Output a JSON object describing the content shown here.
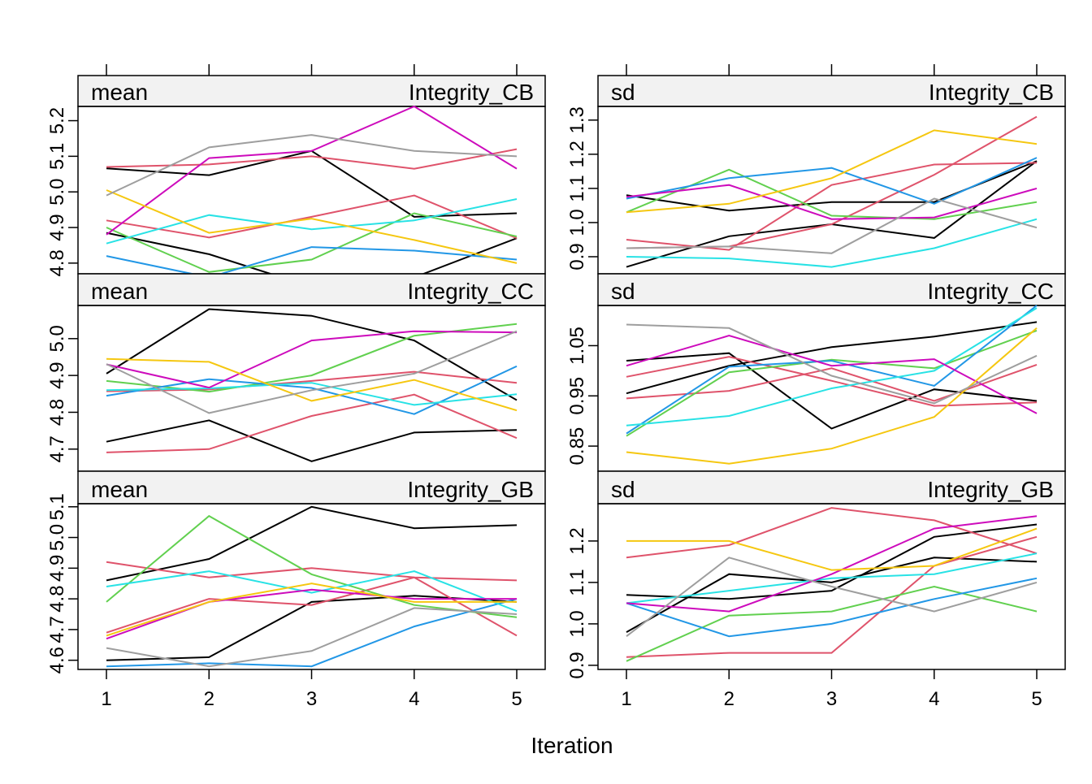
{
  "xlabel": "Iteration",
  "x_ticks": [
    1,
    2,
    3,
    4,
    5
  ],
  "colors": [
    "#000000",
    "#DF536B",
    "#61D04F",
    "#2297E6",
    "#28E2E5",
    "#CD0BBC",
    "#F5C710",
    "#9E9E9E"
  ],
  "chart_data": [
    {
      "type": "line",
      "stat": "mean",
      "variable": "Integrity_CB",
      "x": [
        1,
        2,
        3,
        4,
        5
      ],
      "ylim": [
        4.77,
        5.24
      ],
      "y_ticks": [
        4.8,
        4.9,
        5.0,
        5.1,
        5.2
      ],
      "y_tick_labels": [
        "4.8",
        "4.9",
        "5.0",
        "5.1",
        "5.2"
      ],
      "series": [
        {
          "color": "#000000",
          "values": [
            5.066,
            5.047,
            5.115,
            4.93,
            4.94
          ]
        },
        {
          "color": "#000000",
          "values": [
            4.885,
            4.825,
            4.733,
            4.76,
            4.87
          ]
        },
        {
          "color": "#DF536B",
          "values": [
            4.92,
            4.872,
            4.93,
            4.99,
            4.87
          ]
        },
        {
          "color": "#DF536B",
          "values": [
            5.07,
            5.077,
            5.1,
            5.065,
            5.12
          ]
        },
        {
          "color": "#61D04F",
          "values": [
            4.9,
            4.775,
            4.81,
            4.94,
            4.875
          ]
        },
        {
          "color": "#2297E6",
          "values": [
            4.82,
            4.76,
            4.845,
            4.835,
            4.81
          ]
        },
        {
          "color": "#28E2E5",
          "values": [
            4.855,
            4.935,
            4.895,
            4.92,
            4.98
          ]
        },
        {
          "color": "#CD0BBC",
          "values": [
            4.88,
            5.095,
            5.115,
            5.24,
            5.065
          ]
        },
        {
          "color": "#F5C710",
          "values": [
            5.005,
            4.885,
            4.925,
            4.865,
            4.8
          ]
        },
        {
          "color": "#9E9E9E",
          "values": [
            4.99,
            5.125,
            5.16,
            5.115,
            5.1
          ]
        }
      ]
    },
    {
      "type": "line",
      "stat": "sd",
      "variable": "Integrity_CB",
      "x": [
        1,
        2,
        3,
        4,
        5
      ],
      "ylim": [
        0.85,
        1.34
      ],
      "y_ticks": [
        0.9,
        1.0,
        1.1,
        1.2,
        1.3
      ],
      "y_tick_labels": [
        "0.9",
        "1.0",
        "1.1",
        "1.2",
        "1.3"
      ],
      "series": [
        {
          "color": "#000000",
          "values": [
            1.08,
            1.035,
            1.06,
            1.06,
            1.18
          ]
        },
        {
          "color": "#000000",
          "values": [
            0.87,
            0.96,
            0.995,
            0.955,
            1.18
          ]
        },
        {
          "color": "#DF536B",
          "values": [
            0.95,
            0.92,
            1.11,
            1.17,
            1.175
          ]
        },
        {
          "color": "#DF536B",
          "values": [
            0.925,
            0.93,
            0.995,
            1.14,
            1.31
          ]
        },
        {
          "color": "#61D04F",
          "values": [
            1.03,
            1.155,
            1.02,
            1.01,
            1.06
          ]
        },
        {
          "color": "#2297E6",
          "values": [
            1.07,
            1.13,
            1.16,
            1.055,
            1.19
          ]
        },
        {
          "color": "#28E2E5",
          "values": [
            0.9,
            0.895,
            0.87,
            0.925,
            1.01
          ]
        },
        {
          "color": "#CD0BBC",
          "values": [
            1.075,
            1.11,
            1.01,
            1.015,
            1.1
          ]
        },
        {
          "color": "#F5C710",
          "values": [
            1.03,
            1.055,
            1.13,
            1.27,
            1.23
          ]
        },
        {
          "color": "#9E9E9E",
          "values": [
            0.925,
            0.93,
            0.91,
            1.07,
            0.985
          ]
        }
      ]
    },
    {
      "type": "line",
      "stat": "mean",
      "variable": "Integrity_CC",
      "x": [
        1,
        2,
        3,
        4,
        5
      ],
      "ylim": [
        4.64,
        5.09
      ],
      "y_ticks": [
        4.7,
        4.8,
        4.9,
        5.0
      ],
      "y_tick_labels": [
        "4.7",
        "4.8",
        "4.9",
        "5.0"
      ],
      "series": [
        {
          "color": "#000000",
          "values": [
            4.905,
            5.08,
            5.062,
            4.995,
            4.833
          ]
        },
        {
          "color": "#000000",
          "values": [
            4.72,
            4.778,
            4.667,
            4.745,
            4.752
          ]
        },
        {
          "color": "#DF536B",
          "values": [
            4.857,
            4.862,
            4.885,
            4.91,
            4.88
          ]
        },
        {
          "color": "#DF536B",
          "values": [
            4.691,
            4.7,
            4.79,
            4.848,
            4.73
          ]
        },
        {
          "color": "#61D04F",
          "values": [
            4.885,
            4.856,
            4.9,
            5.008,
            5.04
          ]
        },
        {
          "color": "#2297E6",
          "values": [
            4.845,
            4.89,
            4.866,
            4.795,
            4.925
          ]
        },
        {
          "color": "#28E2E5",
          "values": [
            4.86,
            4.865,
            4.88,
            4.82,
            4.849
          ]
        },
        {
          "color": "#CD0BBC",
          "values": [
            4.93,
            4.867,
            4.995,
            5.02,
            5.017
          ]
        },
        {
          "color": "#F5C710",
          "values": [
            4.945,
            4.937,
            4.831,
            4.888,
            4.805
          ]
        },
        {
          "color": "#9E9E9E",
          "values": [
            4.931,
            4.798,
            4.86,
            4.905,
            5.02
          ]
        }
      ]
    },
    {
      "type": "line",
      "stat": "sd",
      "variable": "Integrity_CC",
      "x": [
        1,
        2,
        3,
        4,
        5
      ],
      "ylim": [
        0.8,
        1.13
      ],
      "y_ticks": [
        0.85,
        0.95,
        1.05
      ],
      "y_tick_labels": [
        "0.85",
        "0.95",
        "1.05"
      ],
      "series": [
        {
          "color": "#000000",
          "values": [
            1.02,
            1.035,
            0.885,
            0.963,
            0.94
          ]
        },
        {
          "color": "#000000",
          "values": [
            0.955,
            1.01,
            1.047,
            1.068,
            1.097
          ]
        },
        {
          "color": "#DF536B",
          "values": [
            0.988,
            1.028,
            0.98,
            0.93,
            0.937
          ]
        },
        {
          "color": "#DF536B",
          "values": [
            0.945,
            0.96,
            1.005,
            0.94,
            1.012
          ]
        },
        {
          "color": "#61D04F",
          "values": [
            0.87,
            0.997,
            1.022,
            1.005,
            1.08
          ]
        },
        {
          "color": "#2297E6",
          "values": [
            0.875,
            1.008,
            1.02,
            0.97,
            1.13
          ]
        },
        {
          "color": "#28E2E5",
          "values": [
            0.891,
            0.91,
            0.965,
            1.0,
            1.125
          ]
        },
        {
          "color": "#CD0BBC",
          "values": [
            1.01,
            1.07,
            1.01,
            1.023,
            0.915
          ]
        },
        {
          "color": "#F5C710",
          "values": [
            0.838,
            0.815,
            0.845,
            0.908,
            1.085
          ]
        },
        {
          "color": "#9E9E9E",
          "values": [
            1.092,
            1.085,
            0.99,
            0.935,
            1.03
          ]
        }
      ]
    },
    {
      "type": "line",
      "stat": "mean",
      "variable": "Integrity_GB",
      "x": [
        1,
        2,
        3,
        4,
        5
      ],
      "ylim": [
        4.57,
        5.11
      ],
      "y_ticks": [
        4.6,
        4.7,
        4.8,
        4.9,
        5.0,
        5.1
      ],
      "y_tick_labels": [
        "4.6",
        "4.7",
        "4.8",
        "4.9",
        "5.0",
        "5.1"
      ],
      "series": [
        {
          "color": "#000000",
          "values": [
            4.86,
            4.93,
            5.1,
            5.03,
            5.04
          ]
        },
        {
          "color": "#000000",
          "values": [
            4.6,
            4.61,
            4.79,
            4.81,
            4.79
          ]
        },
        {
          "color": "#DF536B",
          "values": [
            4.92,
            4.87,
            4.9,
            4.87,
            4.86
          ]
        },
        {
          "color": "#DF536B",
          "values": [
            4.69,
            4.8,
            4.78,
            4.87,
            4.68
          ]
        },
        {
          "color": "#61D04F",
          "values": [
            4.79,
            5.07,
            4.88,
            4.78,
            4.74
          ]
        },
        {
          "color": "#2297E6",
          "values": [
            4.58,
            4.59,
            4.58,
            4.71,
            4.8
          ]
        },
        {
          "color": "#28E2E5",
          "values": [
            4.84,
            4.89,
            4.82,
            4.89,
            4.76
          ]
        },
        {
          "color": "#CD0BBC",
          "values": [
            4.67,
            4.79,
            4.83,
            4.8,
            4.8
          ]
        },
        {
          "color": "#F5C710",
          "values": [
            4.68,
            4.79,
            4.85,
            4.79,
            4.79
          ]
        },
        {
          "color": "#9E9E9E",
          "values": [
            4.64,
            4.58,
            4.63,
            4.77,
            4.75
          ]
        }
      ]
    },
    {
      "type": "line",
      "stat": "sd",
      "variable": "Integrity_GB",
      "x": [
        1,
        2,
        3,
        4,
        5
      ],
      "ylim": [
        0.89,
        1.29
      ],
      "y_ticks": [
        0.9,
        1.0,
        1.1,
        1.2
      ],
      "y_tick_labels": [
        "0.9",
        "1.0",
        "1.1",
        "1.2"
      ],
      "series": [
        {
          "color": "#000000",
          "values": [
            0.98,
            1.12,
            1.1,
            1.16,
            1.15
          ]
        },
        {
          "color": "#000000",
          "values": [
            1.07,
            1.06,
            1.08,
            1.21,
            1.24
          ]
        },
        {
          "color": "#DF536B",
          "values": [
            1.16,
            1.19,
            1.28,
            1.25,
            1.17
          ]
        },
        {
          "color": "#DF536B",
          "values": [
            0.92,
            0.93,
            0.93,
            1.14,
            1.21
          ]
        },
        {
          "color": "#61D04F",
          "values": [
            0.91,
            1.02,
            1.03,
            1.09,
            1.03
          ]
        },
        {
          "color": "#2297E6",
          "values": [
            1.05,
            0.97,
            1.0,
            1.06,
            1.11
          ]
        },
        {
          "color": "#28E2E5",
          "values": [
            1.05,
            1.08,
            1.11,
            1.12,
            1.17
          ]
        },
        {
          "color": "#CD0BBC",
          "values": [
            1.05,
            1.03,
            1.12,
            1.23,
            1.26
          ]
        },
        {
          "color": "#F5C710",
          "values": [
            1.2,
            1.2,
            1.13,
            1.14,
            1.23
          ]
        },
        {
          "color": "#9E9E9E",
          "values": [
            0.97,
            1.16,
            1.09,
            1.03,
            1.1
          ]
        }
      ]
    }
  ]
}
